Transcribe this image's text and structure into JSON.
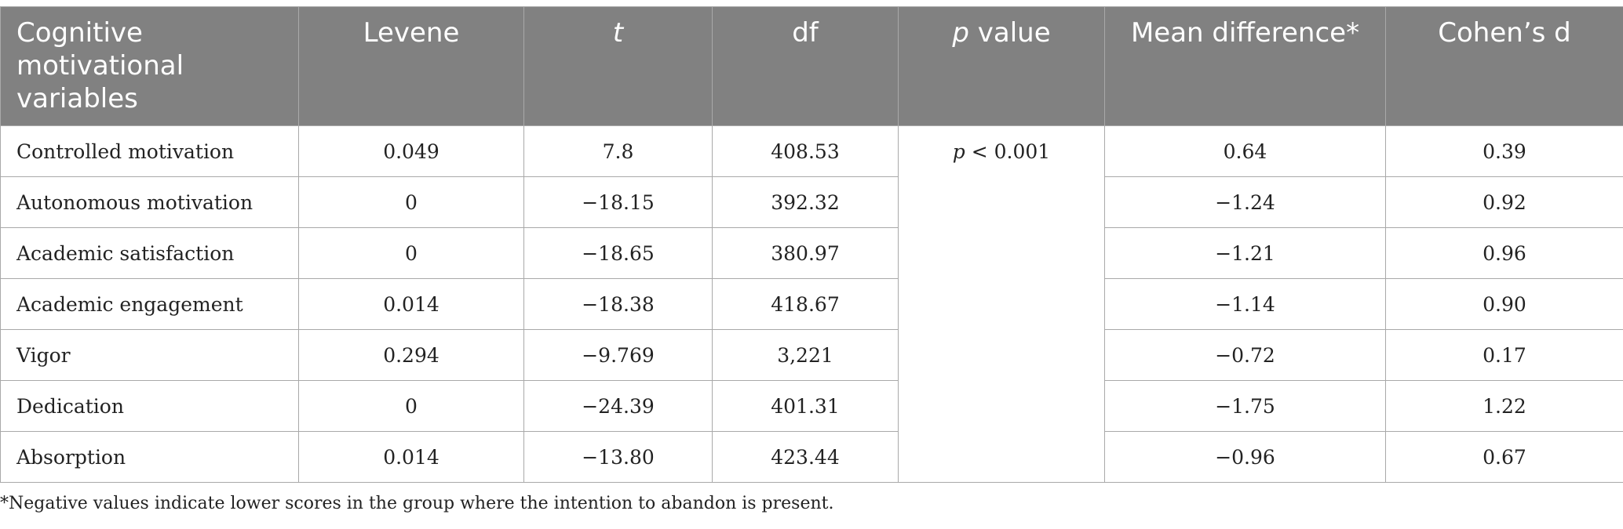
{
  "table": {
    "headers": [
      {
        "text": "Cognitive motivational variables",
        "italic_prefix": "",
        "rest": "Cognitive motivational variables"
      },
      {
        "text": "Levene",
        "italic_prefix": "",
        "rest": "Levene"
      },
      {
        "text": "t",
        "italic_prefix": "t",
        "rest": ""
      },
      {
        "text": "df",
        "italic_prefix": "",
        "rest": "df"
      },
      {
        "text": "p value",
        "italic_prefix": "p",
        "rest": " value"
      },
      {
        "text": "Mean difference*",
        "italic_prefix": "",
        "rest": "Mean difference*"
      },
      {
        "text": "Cohen’s d",
        "italic_prefix": "",
        "rest": "Cohen’s d"
      }
    ],
    "rows": [
      {
        "variable": "Controlled motivation",
        "levene": "0.049",
        "t": "7.8",
        "df": "408.53",
        "mean_diff": "0.64",
        "cohens_d": "0.39"
      },
      {
        "variable": "Autonomous motivation",
        "levene": "0",
        "t": "−18.15",
        "df": "392.32",
        "mean_diff": "−1.24",
        "cohens_d": "0.92"
      },
      {
        "variable": "Academic satisfaction",
        "levene": "0",
        "t": "−18.65",
        "df": "380.97",
        "mean_diff": "−1.21",
        "cohens_d": "0.96"
      },
      {
        "variable": "Academic engagement",
        "levene": "0.014",
        "t": "−18.38",
        "df": "418.67",
        "mean_diff": "−1.14",
        "cohens_d": "0.90"
      },
      {
        "variable": "Vigor",
        "levene": "0.294",
        "t": "−9.769",
        "df": "3,221",
        "mean_diff": "−0.72",
        "cohens_d": "0.17"
      },
      {
        "variable": "Dedication",
        "levene": "0",
        "t": "−24.39",
        "df": "401.31",
        "mean_diff": "−1.75",
        "cohens_d": "1.22"
      },
      {
        "variable": "Absorption",
        "levene": "0.014",
        "t": "−13.80",
        "df": "423.44",
        "mean_diff": "−0.96",
        "cohens_d": "0.67"
      }
    ],
    "p_value_cell": {
      "italic_prefix": "p",
      "rest": " < 0.001"
    }
  },
  "footnote": "*Negative values indicate lower scores in the group where the intention to abandon is present.",
  "colors": {
    "header_bg": "#818181",
    "header_text": "#ffffff",
    "border": "#a9a9a9",
    "body_text": "#222222"
  }
}
